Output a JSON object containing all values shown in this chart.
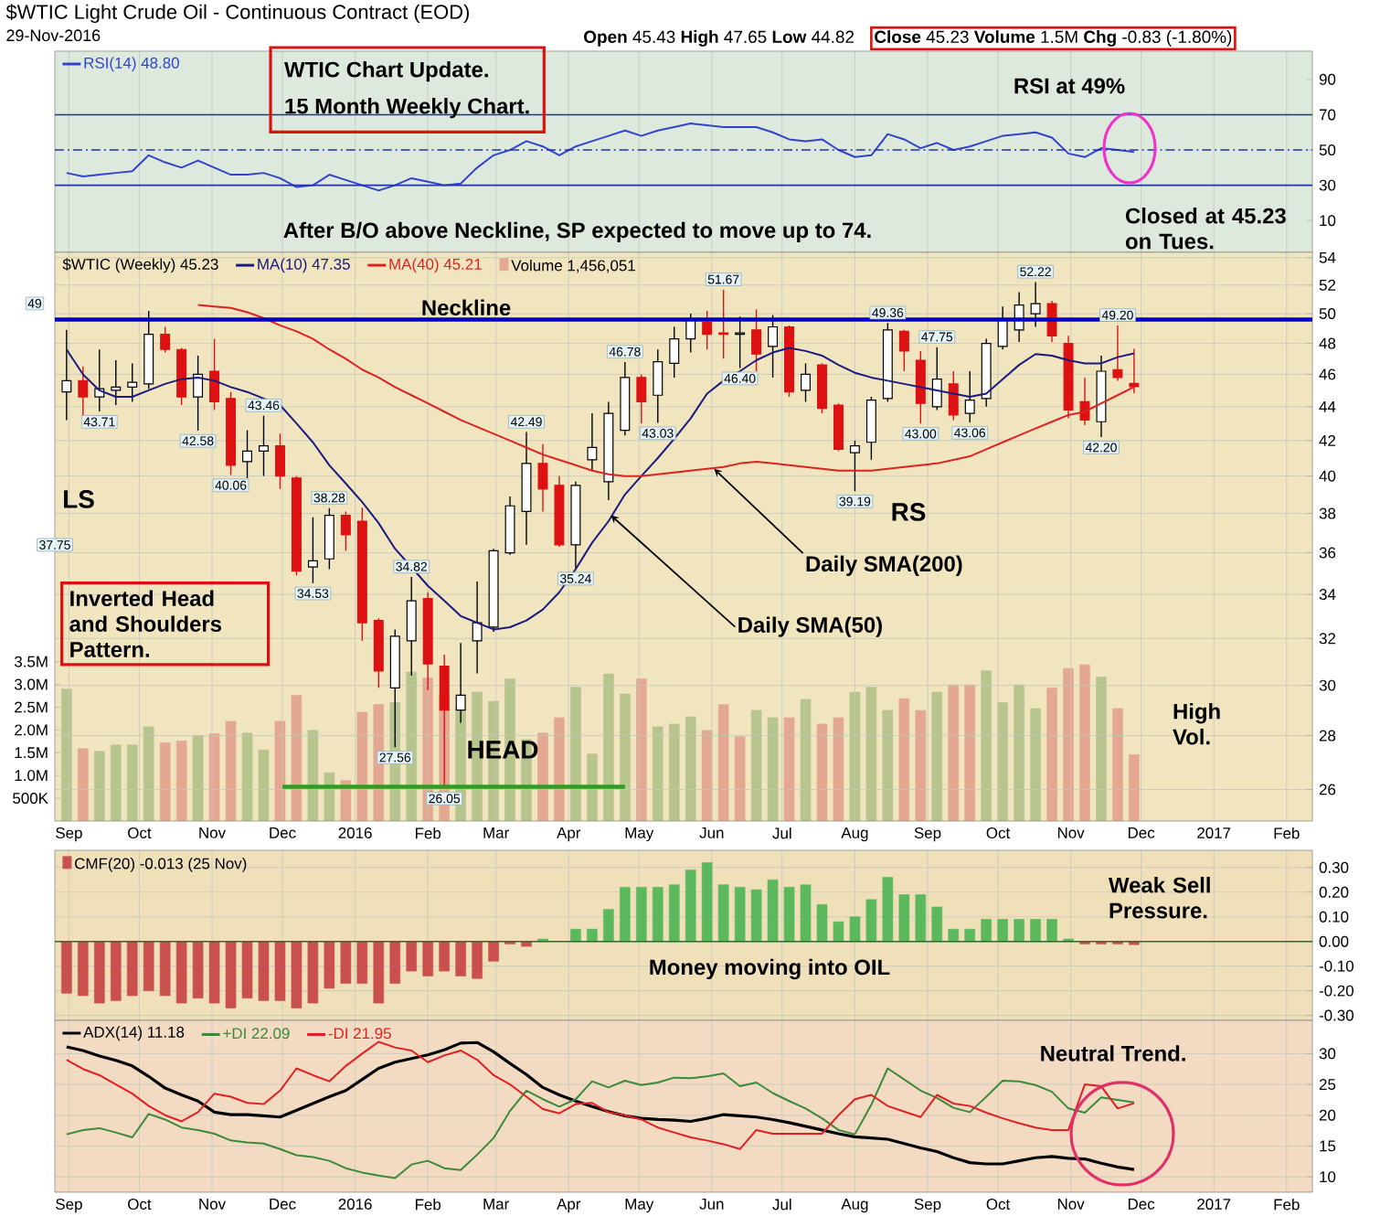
{
  "chart_data": [
    {
      "type": "line",
      "title": "$WTIC Light Crude Oil - Continuous Contract (EOD)",
      "subtitle": "29-Nov-2016",
      "x": [
        "2015-08-31",
        "2015-09-07",
        "2015-09-14",
        "2015-09-21",
        "2015-09-28",
        "2015-10-05",
        "2015-10-12",
        "2015-10-19",
        "2015-10-26",
        "2015-11-02",
        "2015-11-09",
        "2015-11-16",
        "2015-11-23",
        "2015-11-30",
        "2015-12-07",
        "2015-12-14",
        "2015-12-21",
        "2015-12-28",
        "2016-01-04",
        "2016-01-11",
        "2016-01-18",
        "2016-01-25",
        "2016-02-01",
        "2016-02-08",
        "2016-02-15",
        "2016-02-22",
        "2016-02-29",
        "2016-03-07",
        "2016-03-14",
        "2016-03-21",
        "2016-03-28",
        "2016-04-04",
        "2016-04-11",
        "2016-04-18",
        "2016-04-25",
        "2016-05-02",
        "2016-05-09",
        "2016-05-16",
        "2016-05-23",
        "2016-05-30",
        "2016-06-06",
        "2016-06-13",
        "2016-06-20",
        "2016-06-27",
        "2016-07-04",
        "2016-07-11",
        "2016-07-18",
        "2016-07-25",
        "2016-08-01",
        "2016-08-08",
        "2016-08-15",
        "2016-08-22",
        "2016-08-29",
        "2016-09-05",
        "2016-09-12",
        "2016-09-19",
        "2016-09-26",
        "2016-10-03",
        "2016-10-10",
        "2016-10-17",
        "2016-10-24",
        "2016-10-31",
        "2016-11-07",
        "2016-11-14",
        "2016-11-21",
        "2016-11-28"
      ],
      "xlim": [
        "2015-08-26",
        "2017-02-12"
      ],
      "xticks": [
        {
          "value": "2015-09-01",
          "label": null
        },
        {
          "value": "2015-10-01",
          "label": null
        },
        {
          "value": "2015-11-01",
          "label": null
        },
        {
          "value": "2015-12-01",
          "label": null
        },
        {
          "value": "2016-01-01",
          "label": null
        },
        {
          "value": "2016-02-01",
          "label": null
        },
        {
          "value": "2016-03-01",
          "label": null
        },
        {
          "value": "2016-04-01",
          "label": null
        },
        {
          "value": "2016-05-01",
          "label": null
        },
        {
          "value": "2016-06-01",
          "label": null
        },
        {
          "value": "2016-07-01",
          "label": null
        },
        {
          "value": "2016-08-01",
          "label": null
        },
        {
          "value": "2016-09-01",
          "label": null
        },
        {
          "value": "2016-10-01",
          "label": null
        },
        {
          "value": "2016-11-01",
          "label": null
        },
        {
          "value": "2016-12-01",
          "label": null
        },
        {
          "value": "2017-01-01",
          "label": null
        },
        {
          "value": "2017-02-01",
          "label": null
        }
      ],
      "ylim": [
        -8,
        106
      ],
      "yticks": [
        10,
        30,
        50,
        70,
        90
      ],
      "tick_labels": "y",
      "grid": "x",
      "legend": "top left",
      "series": [
        {
          "name": "RSI(14) 48.80",
          "color": "#3344cc",
          "values": [
            37,
            35,
            36,
            37,
            38,
            47,
            43,
            40,
            44,
            40,
            36,
            36,
            37,
            34,
            29,
            30,
            36,
            33,
            30,
            27,
            30,
            34,
            32,
            30,
            31,
            40,
            47,
            50,
            55,
            52,
            47,
            52,
            55,
            58,
            61,
            58,
            61,
            63,
            65,
            64,
            63,
            63,
            63,
            60,
            56,
            55,
            56,
            50,
            46,
            47,
            59,
            56,
            51,
            54,
            50,
            52,
            55,
            58,
            59,
            60,
            57,
            48,
            46,
            51,
            50,
            48.8
          ]
        }
      ],
      "ref_lines": [
        {
          "axis": "y",
          "value": 70,
          "color": "#2233aa"
        },
        {
          "axis": "y",
          "value": 50,
          "color": "#2233aa",
          "line_style": "dashed"
        },
        {
          "axis": "y",
          "value": 30,
          "color": "#2233aa"
        }
      ],
      "annotations": [
        "WTIC Chart Update.",
        "15 Month Weekly Chart.",
        "RSI at 49%",
        "**Open** 45.43 **High** 47.65 **Low** 44.82",
        "**Close** 45.23 **Volume** 1.5M **Chg** -0.83 (-1.80%)"
      ]
    },
    {
      "type": "candlestick",
      "x": [
        "2015-08-31",
        "2015-09-07",
        "2015-09-14",
        "2015-09-21",
        "2015-09-28",
        "2015-10-05",
        "2015-10-12",
        "2015-10-19",
        "2015-10-26",
        "2015-11-02",
        "2015-11-09",
        "2015-11-16",
        "2015-11-23",
        "2015-11-30",
        "2015-12-07",
        "2015-12-14",
        "2015-12-21",
        "2015-12-28",
        "2016-01-04",
        "2016-01-11",
        "2016-01-18",
        "2016-01-25",
        "2016-02-01",
        "2016-02-08",
        "2016-02-15",
        "2016-02-22",
        "2016-02-29",
        "2016-03-07",
        "2016-03-14",
        "2016-03-21",
        "2016-03-28",
        "2016-04-04",
        "2016-04-11",
        "2016-04-18",
        "2016-04-25",
        "2016-05-02",
        "2016-05-09",
        "2016-05-16",
        "2016-05-23",
        "2016-05-30",
        "2016-06-06",
        "2016-06-13",
        "2016-06-20",
        "2016-06-27",
        "2016-07-04",
        "2016-07-11",
        "2016-07-18",
        "2016-07-25",
        "2016-08-01",
        "2016-08-08",
        "2016-08-15",
        "2016-08-22",
        "2016-08-29",
        "2016-09-05",
        "2016-09-12",
        "2016-09-19",
        "2016-09-26",
        "2016-10-03",
        "2016-10-10",
        "2016-10-17",
        "2016-10-24",
        "2016-10-31",
        "2016-11-07",
        "2016-11-14",
        "2016-11-21",
        "2016-11-28"
      ],
      "xlim": [
        "2015-08-26",
        "2017-02-12"
      ],
      "xticks": [
        {
          "value": "2015-09-01",
          "label": "Sep"
        },
        {
          "value": "2015-10-01",
          "label": "Oct"
        },
        {
          "value": "2015-11-01",
          "label": "Nov"
        },
        {
          "value": "2015-12-01",
          "label": "Dec"
        },
        {
          "value": "2016-01-01",
          "label": "2016"
        },
        {
          "value": "2016-02-01",
          "label": "Feb"
        },
        {
          "value": "2016-03-01",
          "label": "Mar"
        },
        {
          "value": "2016-04-01",
          "label": "Apr"
        },
        {
          "value": "2016-05-01",
          "label": "May"
        },
        {
          "value": "2016-06-01",
          "label": "Jun"
        },
        {
          "value": "2016-07-01",
          "label": "Jul"
        },
        {
          "value": "2016-08-01",
          "label": "Aug"
        },
        {
          "value": "2016-09-01",
          "label": "Sep"
        },
        {
          "value": "2016-10-01",
          "label": "Oct"
        },
        {
          "value": "2016-11-01",
          "label": "Nov"
        },
        {
          "value": "2016-12-01",
          "label": "Dec"
        },
        {
          "value": "2017-01-01",
          "label": "2017"
        },
        {
          "value": "2017-02-01",
          "label": "Feb"
        }
      ],
      "ylim": [
        24.9,
        54.4
      ],
      "yticks": [
        26,
        28,
        30,
        32,
        34,
        36,
        38,
        40,
        42,
        44,
        46,
        48,
        50,
        52,
        54
      ],
      "log": true,
      "y2lim": [
        0,
        12490000
      ],
      "y2ticks": [
        {
          "value": 500000,
          "label": "500K"
        },
        {
          "value": 1000000,
          "label": "1.0M"
        },
        {
          "value": 1500000,
          "label": "1.5M"
        },
        {
          "value": 2000000,
          "label": "2.0M"
        },
        {
          "value": 2500000,
          "label": "2.5M"
        },
        {
          "value": 3000000,
          "label": "3.0M"
        },
        {
          "value": 3500000,
          "label": "3.5M"
        }
      ],
      "grid": true,
      "legend": "top left",
      "series": [
        {
          "name": "$WTIC (Weekly) 45.23",
          "type": "candlestick",
          "ohlc": [
            [
              44.9,
              48.9,
              43.2,
              45.6
            ],
            [
              45.6,
              46.5,
              43.2,
              44.6
            ],
            [
              44.6,
              47.6,
              43.71,
              45.1
            ],
            [
              45.0,
              46.9,
              44.1,
              45.2
            ],
            [
              45.2,
              46.7,
              44.3,
              45.5
            ],
            [
              45.4,
              50.2,
              45.1,
              48.6
            ],
            [
              48.6,
              49.1,
              47.4,
              47.6
            ],
            [
              47.6,
              47.7,
              44.1,
              44.6
            ],
            [
              44.6,
              47.2,
              42.58,
              46.0
            ],
            [
              46.2,
              48.3,
              43.8,
              44.3
            ],
            [
              44.5,
              44.9,
              40.06,
              40.6
            ],
            [
              40.8,
              42.6,
              39.9,
              41.4
            ],
            [
              41.4,
              43.46,
              40.0,
              41.7
            ],
            [
              41.7,
              42.4,
              39.3,
              40.0
            ],
            [
              39.9,
              40.0,
              34.9,
              35.1
            ],
            [
              35.3,
              37.8,
              34.53,
              35.6
            ],
            [
              35.7,
              38.28,
              35.2,
              37.9
            ],
            [
              37.9,
              38.1,
              36.1,
              36.9
            ],
            [
              37.6,
              38.3,
              31.9,
              32.7
            ],
            [
              32.8,
              32.9,
              29.9,
              30.6
            ],
            [
              29.9,
              32.4,
              27.56,
              32.1
            ],
            [
              31.9,
              34.82,
              30.4,
              33.7
            ],
            [
              33.8,
              34.1,
              29.8,
              30.9
            ],
            [
              30.8,
              31.3,
              26.05,
              29.0
            ],
            [
              29.0,
              31.8,
              28.5,
              29.6
            ],
            [
              31.9,
              34.6,
              30.5,
              32.7
            ],
            [
              32.5,
              36.2,
              32.3,
              36.1
            ],
            [
              36.0,
              38.9,
              35.9,
              38.4
            ],
            [
              38.1,
              42.49,
              36.4,
              40.7
            ],
            [
              40.7,
              41.8,
              38.1,
              39.3
            ],
            [
              39.5,
              40.0,
              36.3,
              36.4
            ],
            [
              36.4,
              39.7,
              35.24,
              39.5
            ],
            [
              40.9,
              43.6,
              40.3,
              41.6
            ],
            [
              39.7,
              44.3,
              38.7,
              43.6
            ],
            [
              42.6,
              46.78,
              42.3,
              45.8
            ],
            [
              45.8,
              46.0,
              43.0,
              44.3
            ],
            [
              44.7,
              47.6,
              43.03,
              46.8
            ],
            [
              46.7,
              49.1,
              45.8,
              48.3
            ],
            [
              48.3,
              50.0,
              47.4,
              49.6
            ],
            [
              49.4,
              50.2,
              47.6,
              48.6
            ],
            [
              48.7,
              51.67,
              47.0,
              48.6
            ],
            [
              48.6,
              49.8,
              46.4,
              48.7
            ],
            [
              48.9,
              50.3,
              46.2,
              47.3
            ],
            [
              47.8,
              49.9,
              45.8,
              49.1
            ],
            [
              49.1,
              49.2,
              44.6,
              44.9
            ],
            [
              45.0,
              46.7,
              44.3,
              46.0
            ],
            [
              46.6,
              46.7,
              43.6,
              43.9
            ],
            [
              44.1,
              44.2,
              41.4,
              41.5
            ],
            [
              41.3,
              42.0,
              39.19,
              41.7
            ],
            [
              41.9,
              44.6,
              40.9,
              44.4
            ],
            [
              44.5,
              49.36,
              44.3,
              48.9
            ],
            [
              48.8,
              48.9,
              46.2,
              47.5
            ],
            [
              46.9,
              47.5,
              43.0,
              44.2
            ],
            [
              44.0,
              47.75,
              43.8,
              45.7
            ],
            [
              45.4,
              46.2,
              43.2,
              43.5
            ],
            [
              43.6,
              46.2,
              43.06,
              44.4
            ],
            [
              44.5,
              48.3,
              44.0,
              48.0
            ],
            [
              47.8,
              50.5,
              47.6,
              49.6
            ],
            [
              48.9,
              51.5,
              48.1,
              50.6
            ],
            [
              50.0,
              52.22,
              49.1,
              50.7
            ],
            [
              50.7,
              50.9,
              48.1,
              48.5
            ],
            [
              48.0,
              48.5,
              43.3,
              43.8
            ],
            [
              44.3,
              45.8,
              42.9,
              43.2
            ],
            [
              43.1,
              47.2,
              42.2,
              46.2
            ],
            [
              46.3,
              49.2,
              45.6,
              45.8
            ],
            [
              45.43,
              47.65,
              44.82,
              45.23
            ]
          ]
        },
        {
          "name": "MA(10) 47.35",
          "type": "line",
          "color": "#1a1a80",
          "values": [
            47.6,
            46.0,
            45.0,
            44.6,
            44.6,
            45.0,
            45.4,
            45.7,
            45.8,
            45.6,
            45.2,
            44.9,
            44.5,
            44.1,
            43.0,
            41.9,
            40.6,
            39.6,
            38.6,
            37.5,
            36.2,
            35.3,
            34.4,
            33.7,
            33.0,
            32.7,
            32.4,
            32.5,
            32.8,
            33.3,
            34.1,
            35.2,
            36.5,
            37.6,
            39.0,
            40.0,
            41.0,
            42.1,
            43.3,
            44.8,
            45.6,
            46.2,
            46.9,
            47.4,
            47.7,
            47.5,
            47.2,
            46.6,
            46.1,
            45.8,
            45.6,
            45.4,
            45.2,
            45.0,
            44.8,
            44.6,
            44.8,
            45.7,
            46.6,
            47.3,
            47.2,
            46.9,
            46.7,
            46.7,
            47.1,
            47.35
          ]
        },
        {
          "name": "MA(40) 45.21",
          "type": "line",
          "color": "#dd2222",
          "values": [
            null,
            null,
            null,
            null,
            null,
            null,
            null,
            null,
            50.6,
            50.5,
            50.4,
            50.1,
            49.7,
            49.2,
            48.8,
            48.3,
            47.6,
            47.0,
            46.3,
            45.8,
            45.2,
            44.7,
            44.2,
            43.7,
            43.2,
            42.8,
            42.4,
            42.0,
            41.6,
            41.2,
            40.9,
            40.6,
            40.3,
            40.1,
            40.0,
            40.0,
            40.1,
            40.2,
            40.3,
            40.4,
            40.5,
            40.7,
            40.8,
            40.7,
            40.6,
            40.5,
            40.4,
            40.3,
            40.3,
            40.3,
            40.4,
            40.5,
            40.6,
            40.7,
            40.9,
            41.1,
            41.5,
            41.9,
            42.3,
            42.7,
            43.1,
            43.5,
            43.7,
            44.2,
            44.7,
            45.21
          ]
        },
        {
          "type": "line",
          "color": "#2e9e1e",
          "x": [
            "2015-12-01",
            "2016-04-25"
          ],
          "values": [
            26.1,
            26.1
          ]
        },
        {
          "name": "Volume 1,456,051",
          "type": "bar",
          "axis": "y2",
          "values": [
            2900000,
            1590000,
            1530000,
            1670000,
            1670000,
            2070000,
            1720000,
            1760000,
            1870000,
            1920000,
            2190000,
            1930000,
            1560000,
            2190000,
            2760000,
            1990000,
            1060000,
            890000,
            2390000,
            2560000,
            2600000,
            3270000,
            3140000,
            2790000,
            2520000,
            2830000,
            2630000,
            3120000,
            1790000,
            1930000,
            2270000,
            2940000,
            1470000,
            3230000,
            2790000,
            3120000,
            2070000,
            2130000,
            2290000,
            1990000,
            2560000,
            1850000,
            2430000,
            2270000,
            2270000,
            2670000,
            2130000,
            2270000,
            2830000,
            2940000,
            2430000,
            2690000,
            2430000,
            2830000,
            2990000,
            2990000,
            3300000,
            2600000,
            2990000,
            2470000,
            2920000,
            3350000,
            3430000,
            3160000,
            2470000,
            1456051
          ],
          "colors": [
            "#b8c48e",
            "#e4a892",
            "#b8c48e",
            "#b8c48e",
            "#b8c48e",
            "#b8c48e",
            "#e4a892",
            "#e4a892",
            "#b8c48e",
            "#e4a892",
            "#e4a892",
            "#b8c48e",
            "#b8c48e",
            "#e4a892",
            "#e4a892",
            "#b8c48e",
            "#b8c48e",
            "#e4a892",
            "#e4a892",
            "#e4a892",
            "#b8c48e",
            "#b8c48e",
            "#e4a892",
            "#e4a892",
            "#b8c48e",
            "#b8c48e",
            "#b8c48e",
            "#b8c48e",
            "#b8c48e",
            "#e4a892",
            "#e4a892",
            "#b8c48e",
            "#b8c48e",
            "#b8c48e",
            "#b8c48e",
            "#e4a892",
            "#b8c48e",
            "#b8c48e",
            "#b8c48e",
            "#e4a892",
            "#e4a892",
            "#e4a892",
            "#b8c48e",
            "#b8c48e",
            "#e4a892",
            "#b8c48e",
            "#e4a892",
            "#e4a892",
            "#b8c48e",
            "#b8c48e",
            "#b8c48e",
            "#e4a892",
            "#e4a892",
            "#b8c48e",
            "#e4a892",
            "#e4a892",
            "#b8c48e",
            "#b8c48e",
            "#b8c48e",
            "#b8c48e",
            "#e4a892",
            "#e4a892",
            "#e4a892",
            "#b8c48e",
            "#e4a892",
            "#e4a892"
          ]
        }
      ],
      "ref_lines": [
        {
          "axis": "y",
          "value": 49.6,
          "label": "Neckline",
          "color": "#0000cc"
        }
      ],
      "annotations": [
        "After B/O above Neckline, SP expected to move up to 74.",
        "Closed at 45.23 on Tues.",
        "Inverted Head and Shoulders Pattern.",
        "High Vol.",
        "LS",
        "HEAD",
        "RS",
        {
          "text": "Daily SMA(50)",
          "x": "2016-04-19",
          "y": 37.9
        },
        {
          "text": "Daily SMA(200)",
          "x": "2016-06-02",
          "y": 40.4
        },
        "37.75",
        "49",
        {
          "text": "43.71",
          "x": "2015-09-14",
          "y": 43.71
        },
        {
          "text": "42.58",
          "x": "2015-10-26",
          "y": 42.58
        },
        {
          "text": "40.06",
          "x": "2015-11-09",
          "y": 40.06
        },
        {
          "text": "43.46",
          "x": "2015-11-23",
          "y": 43.46
        },
        {
          "text": "34.53",
          "x": "2015-12-14",
          "y": 34.53
        },
        {
          "text": "38.28",
          "x": "2015-12-21",
          "y": 38.28
        },
        {
          "text": "27.56",
          "x": "2016-01-18",
          "y": 27.56
        },
        {
          "text": "34.82",
          "x": "2016-01-25",
          "y": 34.82
        },
        {
          "text": "26.05",
          "x": "2016-02-08",
          "y": 26.05
        },
        {
          "text": "42.49",
          "x": "2016-03-14",
          "y": 42.49
        },
        {
          "text": "35.24",
          "x": "2016-04-04",
          "y": 35.24
        },
        {
          "text": "46.78",
          "x": "2016-04-25",
          "y": 46.78
        },
        {
          "text": "43.03",
          "x": "2016-05-09",
          "y": 43.03
        },
        {
          "text": "51.67",
          "x": "2016-06-06",
          "y": 51.67
        },
        {
          "text": "46.40",
          "x": "2016-06-13",
          "y": 46.4
        },
        {
          "text": "39.19",
          "x": "2016-08-01",
          "y": 39.19
        },
        {
          "text": "49.36",
          "x": "2016-08-15",
          "y": 49.36
        },
        {
          "text": "43.00",
          "x": "2016-08-29",
          "y": 43.0
        },
        {
          "text": "47.75",
          "x": "2016-09-05",
          "y": 47.75
        },
        {
          "text": "43.06",
          "x": "2016-09-19",
          "y": 43.06
        },
        {
          "text": "52.22",
          "x": "2016-10-17",
          "y": 52.22
        },
        {
          "text": "42.20",
          "x": "2016-11-14",
          "y": 42.2
        },
        {
          "text": "49.20",
          "x": "2016-11-21",
          "y": 49.2
        }
      ]
    },
    {
      "type": "bar",
      "x": [
        "2015-08-31",
        "2015-09-07",
        "2015-09-14",
        "2015-09-21",
        "2015-09-28",
        "2015-10-05",
        "2015-10-12",
        "2015-10-19",
        "2015-10-26",
        "2015-11-02",
        "2015-11-09",
        "2015-11-16",
        "2015-11-23",
        "2015-11-30",
        "2015-12-07",
        "2015-12-14",
        "2015-12-21",
        "2015-12-28",
        "2016-01-04",
        "2016-01-11",
        "2016-01-18",
        "2016-01-25",
        "2016-02-01",
        "2016-02-08",
        "2016-02-15",
        "2016-02-22",
        "2016-02-29",
        "2016-03-07",
        "2016-03-14",
        "2016-03-21",
        "2016-03-28",
        "2016-04-04",
        "2016-04-11",
        "2016-04-18",
        "2016-04-25",
        "2016-05-02",
        "2016-05-09",
        "2016-05-16",
        "2016-05-23",
        "2016-05-30",
        "2016-06-06",
        "2016-06-13",
        "2016-06-20",
        "2016-06-27",
        "2016-07-04",
        "2016-07-11",
        "2016-07-18",
        "2016-07-25",
        "2016-08-01",
        "2016-08-08",
        "2016-08-15",
        "2016-08-22",
        "2016-08-29",
        "2016-09-05",
        "2016-09-12",
        "2016-09-19",
        "2016-09-26",
        "2016-10-03",
        "2016-10-10",
        "2016-10-17",
        "2016-10-24",
        "2016-10-31",
        "2016-11-07",
        "2016-11-14",
        "2016-11-21",
        "2016-11-28"
      ],
      "xlim": [
        "2015-08-26",
        "2017-02-12"
      ],
      "xticks": [
        {
          "value": "2015-09-01",
          "label": null
        },
        {
          "value": "2015-10-01",
          "label": null
        },
        {
          "value": "2015-11-01",
          "label": null
        },
        {
          "value": "2015-12-01",
          "label": null
        },
        {
          "value": "2016-01-01",
          "label": null
        },
        {
          "value": "2016-02-01",
          "label": null
        },
        {
          "value": "2016-03-01",
          "label": null
        },
        {
          "value": "2016-04-01",
          "label": null
        },
        {
          "value": "2016-05-01",
          "label": null
        },
        {
          "value": "2016-06-01",
          "label": null
        },
        {
          "value": "2016-07-01",
          "label": null
        },
        {
          "value": "2016-08-01",
          "label": null
        },
        {
          "value": "2016-09-01",
          "label": null
        },
        {
          "value": "2016-10-01",
          "label": null
        },
        {
          "value": "2016-11-01",
          "label": null
        },
        {
          "value": "2016-12-01",
          "label": null
        },
        {
          "value": "2017-01-01",
          "label": null
        },
        {
          "value": "2017-02-01",
          "label": null
        }
      ],
      "ylim": [
        -0.32,
        0.37
      ],
      "yticks": [
        {
          "value": -0.3,
          "label": "-0.30"
        },
        {
          "value": -0.2,
          "label": "-0.20"
        },
        {
          "value": -0.1,
          "label": "-0.10"
        },
        {
          "value": 0,
          "label": "0.00"
        },
        {
          "value": 0.1,
          "label": "0.10"
        },
        {
          "value": 0.2,
          "label": "0.20"
        },
        {
          "value": 0.3,
          "label": "0.30"
        }
      ],
      "tick_labels": "y",
      "grid": true,
      "legend": "top left",
      "series": [
        {
          "name": "CMF(20) -0.013 (25 Nov)",
          "values": [
            -0.21,
            -0.22,
            -0.25,
            -0.24,
            -0.22,
            -0.2,
            -0.22,
            -0.25,
            -0.23,
            -0.25,
            -0.27,
            -0.23,
            -0.24,
            -0.24,
            -0.27,
            -0.25,
            -0.19,
            -0.17,
            -0.17,
            -0.25,
            -0.17,
            -0.12,
            -0.14,
            -0.12,
            -0.14,
            -0.15,
            -0.08,
            -0.01,
            -0.02,
            0.01,
            null,
            0.05,
            0.05,
            0.13,
            0.22,
            0.22,
            0.22,
            0.23,
            0.29,
            0.32,
            0.23,
            0.22,
            0.21,
            0.25,
            0.22,
            0.23,
            0.15,
            0.08,
            0.1,
            0.17,
            0.26,
            0.19,
            0.19,
            0.14,
            0.05,
            0.05,
            0.09,
            0.09,
            0.09,
            0.09,
            0.09,
            0.01,
            -0.01,
            -0.01,
            -0.01,
            -0.013
          ],
          "colors": [
            "#c9504c",
            "#c9504c",
            "#c9504c",
            "#c9504c",
            "#c9504c",
            "#c9504c",
            "#c9504c",
            "#c9504c",
            "#c9504c",
            "#c9504c",
            "#c9504c",
            "#c9504c",
            "#c9504c",
            "#c9504c",
            "#c9504c",
            "#c9504c",
            "#c9504c",
            "#c9504c",
            "#c9504c",
            "#c9504c",
            "#c9504c",
            "#c9504c",
            "#c9504c",
            "#c9504c",
            "#c9504c",
            "#c9504c",
            "#c9504c",
            "#c9504c",
            "#c9504c",
            "#5cb85c",
            "#5cb85c",
            "#5cb85c",
            "#5cb85c",
            "#5cb85c",
            "#5cb85c",
            "#5cb85c",
            "#5cb85c",
            "#5cb85c",
            "#5cb85c",
            "#5cb85c",
            "#5cb85c",
            "#5cb85c",
            "#5cb85c",
            "#5cb85c",
            "#5cb85c",
            "#5cb85c",
            "#5cb85c",
            "#5cb85c",
            "#5cb85c",
            "#5cb85c",
            "#5cb85c",
            "#5cb85c",
            "#5cb85c",
            "#5cb85c",
            "#5cb85c",
            "#5cb85c",
            "#5cb85c",
            "#5cb85c",
            "#5cb85c",
            "#5cb85c",
            "#5cb85c",
            "#5cb85c",
            "#c9504c",
            "#c9504c",
            "#c9504c",
            "#c9504c"
          ]
        }
      ],
      "ref_lines": [
        {
          "axis": "y",
          "value": 0,
          "color": "#2e6b2e"
        }
      ],
      "annotations": [
        "Weak Sell Pressure.",
        "Money moving into OIL"
      ]
    },
    {
      "type": "line",
      "x": [
        "2015-08-31",
        "2015-09-07",
        "2015-09-14",
        "2015-09-21",
        "2015-09-28",
        "2015-10-05",
        "2015-10-12",
        "2015-10-19",
        "2015-10-26",
        "2015-11-02",
        "2015-11-09",
        "2015-11-16",
        "2015-11-23",
        "2015-11-30",
        "2015-12-07",
        "2015-12-14",
        "2015-12-21",
        "2015-12-28",
        "2016-01-04",
        "2016-01-11",
        "2016-01-18",
        "2016-01-25",
        "2016-02-01",
        "2016-02-08",
        "2016-02-15",
        "2016-02-22",
        "2016-02-29",
        "2016-03-07",
        "2016-03-14",
        "2016-03-21",
        "2016-03-28",
        "2016-04-04",
        "2016-04-11",
        "2016-04-18",
        "2016-04-25",
        "2016-05-02",
        "2016-05-09",
        "2016-05-16",
        "2016-05-23",
        "2016-05-30",
        "2016-06-06",
        "2016-06-13",
        "2016-06-20",
        "2016-06-27",
        "2016-07-04",
        "2016-07-11",
        "2016-07-18",
        "2016-07-25",
        "2016-08-01",
        "2016-08-08",
        "2016-08-15",
        "2016-08-22",
        "2016-08-29",
        "2016-09-05",
        "2016-09-12",
        "2016-09-19",
        "2016-09-26",
        "2016-10-03",
        "2016-10-10",
        "2016-10-17",
        "2016-10-24",
        "2016-10-31",
        "2016-11-07",
        "2016-11-14",
        "2016-11-21",
        "2016-11-28"
      ],
      "xlim": [
        "2015-08-26",
        "2017-02-12"
      ],
      "xticks": [
        {
          "value": "2015-09-01",
          "label": "Sep"
        },
        {
          "value": "2015-10-01",
          "label": "Oct"
        },
        {
          "value": "2015-11-01",
          "label": "Nov"
        },
        {
          "value": "2015-12-01",
          "label": "Dec"
        },
        {
          "value": "2016-01-01",
          "label": "2016"
        },
        {
          "value": "2016-02-01",
          "label": "Feb"
        },
        {
          "value": "2016-03-01",
          "label": "Mar"
        },
        {
          "value": "2016-04-01",
          "label": "Apr"
        },
        {
          "value": "2016-05-01",
          "label": "May"
        },
        {
          "value": "2016-06-01",
          "label": "Jun"
        },
        {
          "value": "2016-07-01",
          "label": "Jul"
        },
        {
          "value": "2016-08-01",
          "label": "Aug"
        },
        {
          "value": "2016-09-01",
          "label": "Sep"
        },
        {
          "value": "2016-10-01",
          "label": "Oct"
        },
        {
          "value": "2016-11-01",
          "label": "Nov"
        },
        {
          "value": "2016-12-01",
          "label": "Dec"
        },
        {
          "value": "2017-01-01",
          "label": "2017"
        },
        {
          "value": "2017-02-01",
          "label": "Feb"
        }
      ],
      "ylim": [
        7.5,
        35.4
      ],
      "yticks": [
        10,
        15,
        20,
        25,
        30
      ],
      "grid": true,
      "legend": "top left",
      "series": [
        {
          "name": "ADX(14) 11.18",
          "color": "#000000",
          "values": [
            31.1,
            30.5,
            29.6,
            28.9,
            28.0,
            26.3,
            24.4,
            23.3,
            22.3,
            20.5,
            20.1,
            20.1,
            19.9,
            19.7,
            20.8,
            21.9,
            23.0,
            24.0,
            25.8,
            27.6,
            28.6,
            29.2,
            29.8,
            30.6,
            31.7,
            31.8,
            30.3,
            28.4,
            26.6,
            24.5,
            23.3,
            22.3,
            21.4,
            20.6,
            19.9,
            19.5,
            19.3,
            19.2,
            19.0,
            19.5,
            20.1,
            19.9,
            19.7,
            19.3,
            18.8,
            18.2,
            17.6,
            17.0,
            16.5,
            16.3,
            16.1,
            15.4,
            14.7,
            14.1,
            13.1,
            12.3,
            12.1,
            12.1,
            12.6,
            13.1,
            13.3,
            13.0,
            12.9,
            12.2,
            11.6,
            11.18
          ]
        },
        {
          "name": "+DI 22.09",
          "color": "#3a8a3a",
          "values": [
            16.9,
            17.6,
            17.9,
            17.2,
            16.4,
            20.2,
            19.3,
            18.0,
            17.6,
            17.0,
            15.9,
            15.6,
            15.4,
            14.5,
            13.5,
            13.2,
            12.6,
            11.4,
            10.7,
            10.2,
            9.8,
            12.0,
            12.6,
            11.4,
            11.1,
            13.6,
            16.3,
            20.7,
            24.0,
            22.6,
            21.4,
            22.6,
            25.5,
            24.5,
            25.6,
            24.9,
            25.3,
            26.1,
            26.0,
            26.3,
            26.8,
            24.7,
            25.3,
            23.6,
            22.3,
            21.1,
            19.5,
            17.6,
            16.9,
            21.7,
            27.6,
            25.8,
            24.0,
            22.8,
            21.2,
            20.5,
            23.0,
            25.6,
            25.5,
            24.9,
            23.8,
            21.1,
            20.4,
            22.9,
            22.5,
            22.09
          ]
        },
        {
          "name": "-DI 21.95",
          "color": "#e02020",
          "values": [
            29.0,
            27.5,
            26.5,
            25.0,
            23.5,
            21.5,
            20.0,
            19.0,
            20.5,
            23.5,
            23.0,
            22.0,
            21.8,
            24.0,
            27.6,
            26.5,
            25.5,
            28.0,
            30.0,
            31.9,
            31.0,
            30.5,
            28.6,
            29.7,
            30.5,
            29.0,
            26.5,
            25.0,
            23.0,
            21.0,
            20.3,
            21.8,
            22.0,
            20.5,
            20.0,
            19.3,
            18.0,
            17.2,
            16.4,
            15.9,
            15.3,
            14.5,
            17.6,
            17.0,
            17.0,
            17.0,
            17.0,
            20.0,
            22.6,
            23.3,
            21.5,
            20.6,
            19.7,
            23.3,
            21.9,
            21.5,
            20.4,
            19.5,
            18.7,
            18.0,
            17.6,
            17.6,
            25.0,
            24.7,
            21.1,
            21.95
          ]
        }
      ],
      "annotations": [
        "Neutral Trend."
      ]
    }
  ]
}
